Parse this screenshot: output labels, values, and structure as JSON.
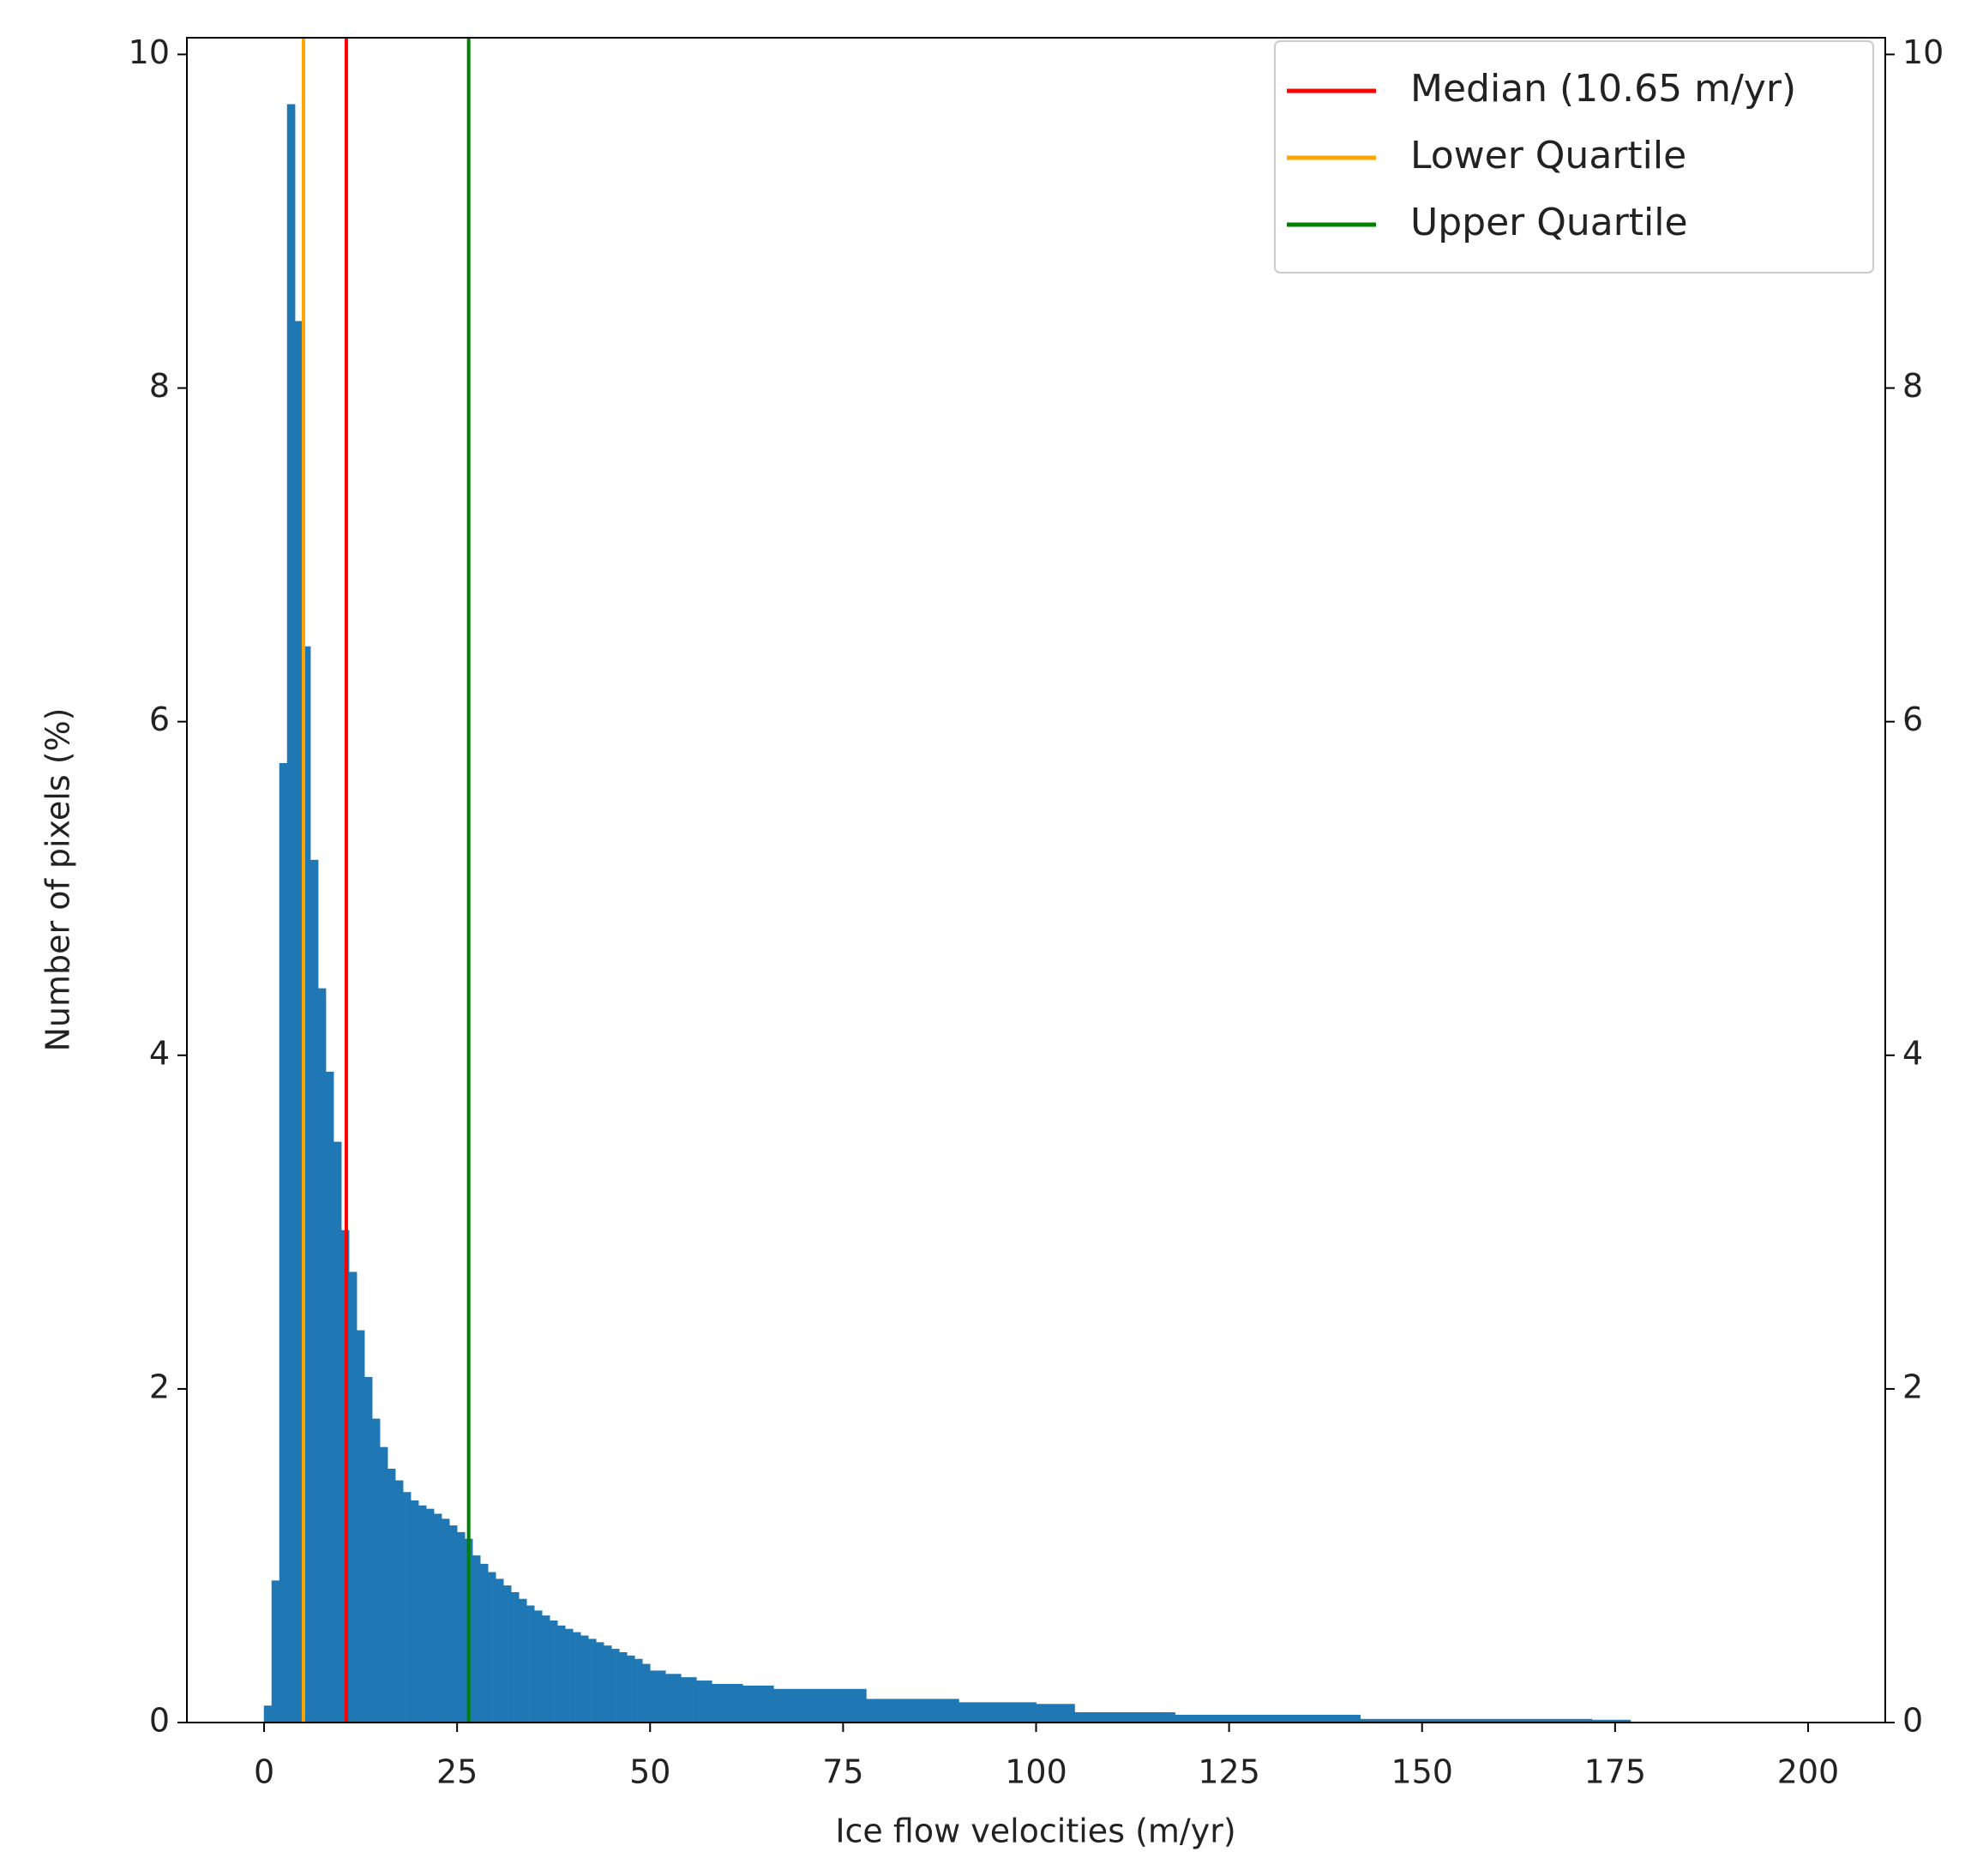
{
  "chart_data": {
    "type": "histogram",
    "xlabel": "Ice flow velocities (m/yr)",
    "ylabel": "Number of pixels (%)",
    "bins": [
      0,
      1,
      2,
      3,
      4,
      5,
      6,
      7,
      8,
      9,
      10,
      11,
      12,
      13,
      14,
      15,
      16,
      17,
      18,
      19,
      20,
      21,
      22,
      23,
      24,
      25,
      26,
      27,
      28,
      29,
      30,
      31,
      32,
      33,
      34,
      35,
      36,
      37,
      38,
      39,
      40,
      41,
      42,
      43,
      44,
      45,
      46,
      47,
      48,
      49,
      50,
      52,
      54,
      56,
      58,
      62,
      66,
      78,
      90,
      100,
      105,
      118,
      142,
      172,
      177
    ],
    "values": [
      0.1,
      0.85,
      5.75,
      9.7,
      8.4,
      6.45,
      5.17,
      4.4,
      3.9,
      3.48,
      2.95,
      2.7,
      2.35,
      2.07,
      1.82,
      1.65,
      1.52,
      1.45,
      1.38,
      1.33,
      1.3,
      1.28,
      1.25,
      1.22,
      1.18,
      1.14,
      1.1,
      1.0,
      0.95,
      0.9,
      0.86,
      0.82,
      0.78,
      0.74,
      0.7,
      0.67,
      0.64,
      0.61,
      0.58,
      0.56,
      0.54,
      0.52,
      0.5,
      0.48,
      0.46,
      0.44,
      0.42,
      0.4,
      0.38,
      0.35,
      0.31,
      0.29,
      0.27,
      0.25,
      0.23,
      0.22,
      0.2,
      0.14,
      0.12,
      0.11,
      0.06,
      0.045,
      0.02,
      0.015
    ],
    "color": "#1f77b4",
    "lines": [
      {
        "name": "Median (10.65 m/yr)",
        "color": "#ff0000",
        "value": 10.65
      },
      {
        "name": "Lower Quartile",
        "color": "#ffa500",
        "value": 5.1
      },
      {
        "name": "Upper Quartile",
        "color": "#008000",
        "value": 26.5
      }
    ],
    "xlim": [
      -10,
      210
    ],
    "xticks": [
      0,
      25,
      50,
      75,
      100,
      125,
      150,
      175,
      200
    ],
    "ylim": [
      0,
      10.1
    ],
    "yticks": [
      0,
      2,
      4,
      6,
      8,
      10
    ],
    "y2lim": [
      0,
      10.1
    ],
    "y2ticks": [
      0,
      2,
      4,
      6,
      8,
      10
    ],
    "legend": "upper right"
  }
}
